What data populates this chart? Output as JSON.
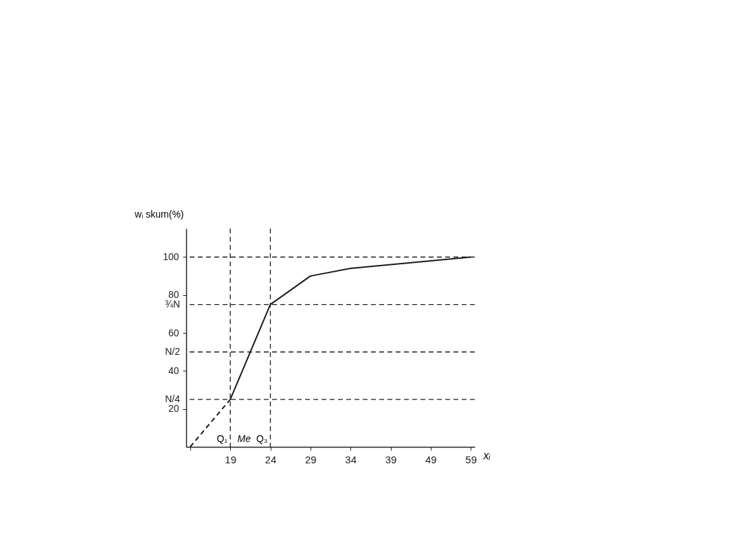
{
  "chart_data": {
    "type": "line",
    "xlabel": "xᵢ",
    "ylabel": "wᵢ skum(%)",
    "categories": [
      null,
      "19",
      "24",
      "29",
      "34",
      "39",
      "49",
      "59"
    ],
    "series": [
      {
        "color": "#1a1a1a",
        "values": [
          null,
          25,
          75,
          90,
          94,
          96,
          98,
          100
        ],
        "line_style": "solid"
      },
      {
        "color": "#1a1a1a",
        "values": [
          0,
          25,
          null,
          null,
          null,
          null,
          null,
          null
        ],
        "line_style": "dashed"
      }
    ],
    "ylim": [
      0,
      115
    ],
    "yticks": [
      20,
      40,
      60,
      80,
      100
    ],
    "ref_lines": [
      {
        "axis": "y",
        "value": 25,
        "label": "N/4",
        "line_style": "dashed",
        "color": "#1a1a1a"
      },
      {
        "axis": "y",
        "value": 50,
        "label": "N/2",
        "line_style": "dashed",
        "color": "#1a1a1a"
      },
      {
        "axis": "y",
        "value": 75,
        "label": "¾N",
        "line_style": "dashed",
        "color": "#1a1a1a"
      },
      {
        "axis": "y",
        "value": 100,
        "label": null,
        "line_style": "dashed",
        "color": "#1a1a1a"
      },
      {
        "axis": "x",
        "value": "19",
        "label": "Q₁",
        "line_style": "dashed",
        "color": "#1a1a1a"
      },
      {
        "axis": "x",
        "value": "24",
        "label": "Q₃",
        "line_style": "dashed",
        "color": "#1a1a1a"
      }
    ],
    "annotations": [
      "Me"
    ],
    "grid": false,
    "marker": "none"
  }
}
